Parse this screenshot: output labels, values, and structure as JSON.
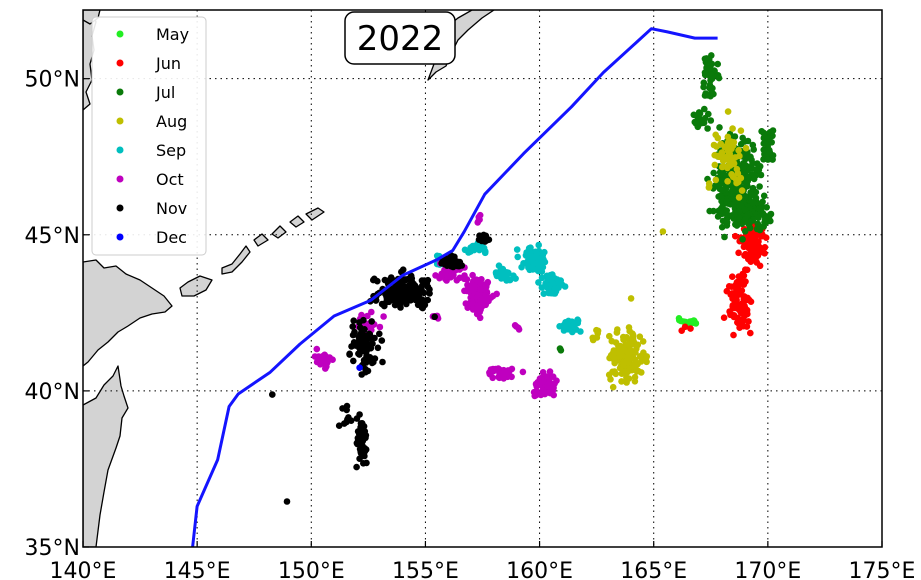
{
  "title": "2022",
  "colors": {
    "land": "#d3d3d3",
    "route_line": "#1414ff",
    "May": "#22ee22",
    "Jun": "#ff0000",
    "Jul": "#0a7a0a",
    "Aug": "#bfbf00",
    "Sep": "#00bfbf",
    "Oct": "#bf00bf",
    "Nov": "#000000",
    "Dec": "#0000ff"
  },
  "axes": {
    "x_ticks": [
      {
        "value": 140,
        "label": "140°E"
      },
      {
        "value": 145,
        "label": "145°E"
      },
      {
        "value": 150,
        "label": "150°E"
      },
      {
        "value": 155,
        "label": "155°E"
      },
      {
        "value": 160,
        "label": "160°E"
      },
      {
        "value": 165,
        "label": "165°E"
      },
      {
        "value": 170,
        "label": "170°E"
      },
      {
        "value": 175,
        "label": "175°E"
      }
    ],
    "y_ticks": [
      {
        "value": 35,
        "label": "35°N"
      },
      {
        "value": 40,
        "label": "40°N"
      },
      {
        "value": 45,
        "label": "45°N"
      },
      {
        "value": 50,
        "label": "50°N"
      }
    ],
    "xlim": [
      140,
      175
    ],
    "ylim": [
      35,
      52.2
    ],
    "grid": true
  },
  "legend": {
    "position": "top-left",
    "entries": [
      "May",
      "Jun",
      "Jul",
      "Aug",
      "Sep",
      "Oct",
      "Nov",
      "Dec"
    ]
  },
  "chart_data": {
    "type": "scatter",
    "title": "2022",
    "xlim": [
      140,
      175
    ],
    "ylim": [
      35,
      52.2
    ],
    "line": {
      "points": [
        [
          144.8,
          35.0
        ],
        [
          145.0,
          36.3
        ],
        [
          145.9,
          37.8
        ],
        [
          146.4,
          39.5
        ],
        [
          146.8,
          39.9
        ],
        [
          148.2,
          40.6
        ],
        [
          149.5,
          41.5
        ],
        [
          151.0,
          42.4
        ],
        [
          152.6,
          42.9
        ],
        [
          154.0,
          43.7
        ],
        [
          155.5,
          44.2
        ],
        [
          156.2,
          44.5
        ],
        [
          156.7,
          45.1
        ],
        [
          157.6,
          46.3
        ],
        [
          159.3,
          47.6
        ],
        [
          161.4,
          49.1
        ],
        [
          162.8,
          50.2
        ],
        [
          164.9,
          51.6
        ],
        [
          165.6,
          51.5
        ],
        [
          166.8,
          51.3
        ],
        [
          167.8,
          51.3
        ]
      ]
    },
    "series": [
      {
        "name": "May",
        "clusters": [
          [
            166.5,
            42.2,
            0.5,
            0.1,
            18
          ]
        ]
      },
      {
        "name": "Jun",
        "clusters": [
          [
            169.3,
            44.7,
            0.5,
            0.5,
            80
          ],
          [
            168.8,
            42.8,
            0.5,
            0.8,
            80
          ],
          [
            166.4,
            42.0,
            0.2,
            0.08,
            3
          ]
        ]
      },
      {
        "name": "Jul",
        "clusters": [
          [
            168.6,
            46.6,
            0.9,
            1.3,
            300
          ],
          [
            169.4,
            45.7,
            0.6,
            0.5,
            80
          ],
          [
            170.0,
            47.8,
            0.25,
            0.6,
            40
          ],
          [
            167.5,
            50.0,
            0.35,
            0.7,
            40
          ],
          [
            167.0,
            48.7,
            0.35,
            0.4,
            20
          ],
          [
            161.0,
            41.4,
            0.1,
            0.1,
            2
          ]
        ]
      },
      {
        "name": "Aug",
        "clusters": [
          [
            168.2,
            47.5,
            0.8,
            0.9,
            70
          ],
          [
            163.9,
            41.1,
            0.7,
            0.7,
            130
          ],
          [
            162.4,
            41.8,
            0.2,
            0.25,
            6
          ],
          [
            165.4,
            45.1,
            0.05,
            0.05,
            1
          ],
          [
            164.0,
            43.0,
            0.05,
            0.05,
            1
          ]
        ]
      },
      {
        "name": "Sep",
        "clusters": [
          [
            159.7,
            44.2,
            0.5,
            0.35,
            80
          ],
          [
            160.5,
            43.4,
            0.4,
            0.3,
            50
          ],
          [
            158.4,
            43.7,
            0.45,
            0.2,
            35
          ],
          [
            161.4,
            42.1,
            0.35,
            0.2,
            30
          ],
          [
            157.2,
            44.6,
            0.5,
            0.15,
            25
          ],
          [
            155.6,
            44.2,
            0.2,
            0.3,
            10
          ]
        ]
      },
      {
        "name": "Oct",
        "clusters": [
          [
            157.3,
            43.1,
            0.55,
            0.55,
            120
          ],
          [
            156.1,
            43.9,
            0.55,
            0.4,
            45
          ],
          [
            160.2,
            40.2,
            0.45,
            0.35,
            55
          ],
          [
            158.4,
            40.6,
            0.6,
            0.2,
            25
          ],
          [
            155.4,
            42.4,
            0.2,
            0.1,
            8
          ],
          [
            157.4,
            45.5,
            0.2,
            0.1,
            5
          ],
          [
            150.5,
            41.0,
            0.5,
            0.3,
            25
          ],
          [
            152.5,
            42.2,
            0.6,
            0.3,
            20
          ],
          [
            159.0,
            42.0,
            0.15,
            0.1,
            4
          ]
        ]
      },
      {
        "name": "Nov",
        "clusters": [
          [
            154.0,
            43.2,
            1.1,
            0.5,
            150
          ],
          [
            152.3,
            41.4,
            0.5,
            0.7,
            80
          ],
          [
            152.2,
            38.4,
            0.2,
            0.7,
            45
          ],
          [
            156.2,
            44.1,
            0.4,
            0.2,
            30
          ],
          [
            157.6,
            44.9,
            0.2,
            0.15,
            10
          ],
          [
            151.6,
            39.2,
            0.4,
            0.3,
            10
          ],
          [
            148.3,
            39.9,
            0.05,
            0.05,
            1
          ],
          [
            148.9,
            36.5,
            0.05,
            0.05,
            1
          ]
        ]
      },
      {
        "name": "Dec",
        "clusters": [
          [
            152.1,
            40.7,
            0.05,
            0.05,
            1
          ]
        ]
      }
    ]
  }
}
